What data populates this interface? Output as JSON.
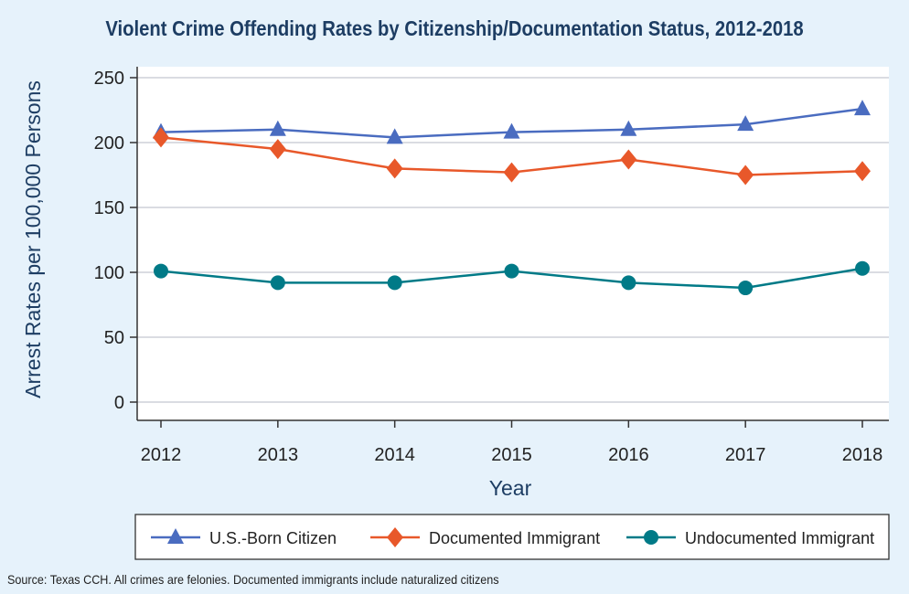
{
  "chart_data": {
    "type": "line",
    "title": "Violent Crime Offending Rates by Citizenship/Documentation Status, 2012-2018",
    "xlabel": "Year",
    "ylabel": "Arrest Rates per 100,000 Persons",
    "x": [
      "2012",
      "2013",
      "2014",
      "2015",
      "2016",
      "2017",
      "2018"
    ],
    "yticks": [
      0,
      50,
      100,
      150,
      200,
      250
    ],
    "ylim": [
      -14,
      262
    ],
    "grid": true,
    "legend_position": "bottom",
    "series": [
      {
        "name": "U.S.-Born Citizen",
        "color": "#4a6cc0",
        "marker": "triangle",
        "values": [
          208,
          210,
          204,
          208,
          210,
          214,
          226
        ]
      },
      {
        "name": "Documented Immigrant",
        "color": "#e8582a",
        "marker": "diamond",
        "values": [
          204,
          195,
          180,
          177,
          187,
          175,
          178
        ]
      },
      {
        "name": "Undocumented Immigrant",
        "color": "#007a87",
        "marker": "circle",
        "values": [
          101,
          92,
          92,
          101,
          92,
          88,
          103
        ]
      }
    ],
    "source": "Source: Texas CCH. All crimes are felonies. Documented immigrants include naturalized citizens"
  }
}
